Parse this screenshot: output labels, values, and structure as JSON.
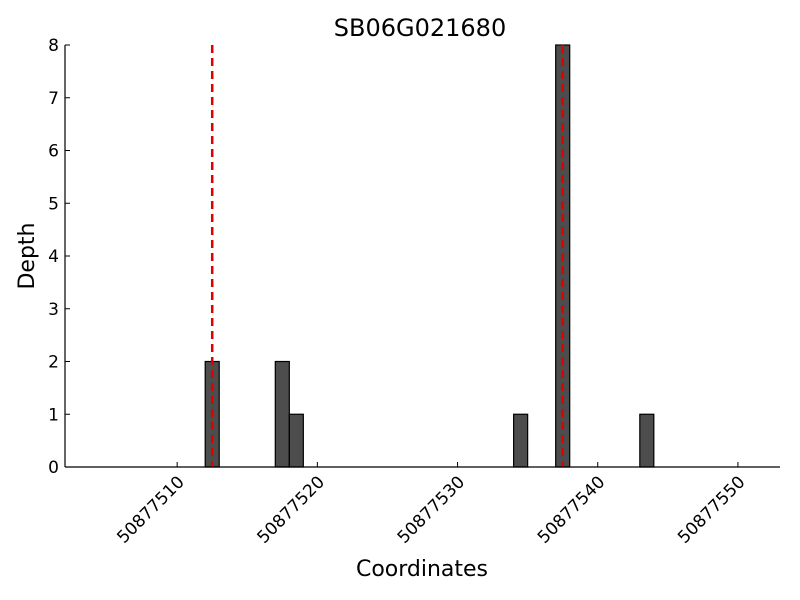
{
  "chart_data": {
    "type": "bar",
    "title": "SB06G021680",
    "x_label": "Coordinates",
    "y_label": "Depth",
    "x": [
      50877512.5,
      50877517.5,
      50877518.5,
      50877534.5,
      50877537.5,
      50877543.5
    ],
    "values": [
      2,
      2,
      1,
      1,
      8,
      1
    ],
    "color": "#4d4d4d",
    "xlim": [
      50877502,
      50877553
    ],
    "xticks": [
      50877510,
      50877520,
      50877530,
      50877540,
      50877550
    ],
    "ylim": [
      0,
      8
    ],
    "yticks": [
      0,
      1,
      2,
      3,
      4,
      5,
      6,
      7,
      8
    ],
    "vlines": {
      "x": [
        50877512.5,
        50877537.5
      ],
      "color": "#e00000"
    }
  }
}
